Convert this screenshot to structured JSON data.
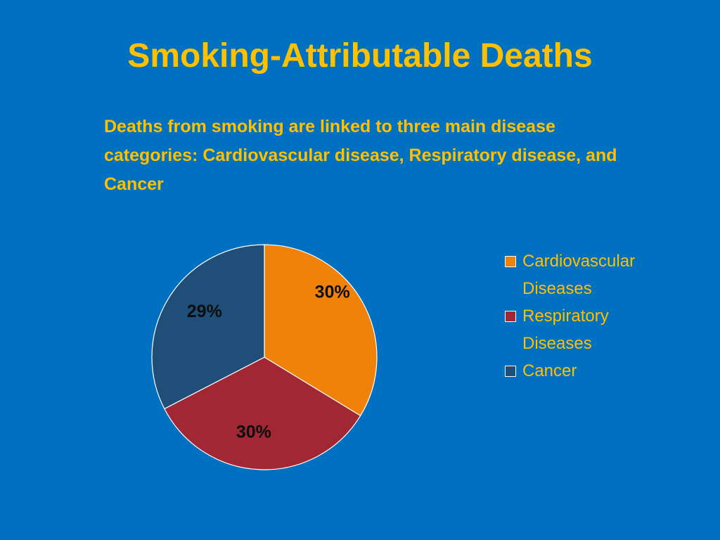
{
  "slide": {
    "title": "Smoking-Attributable Deaths",
    "subtitle": "Deaths from smoking are linked to three main disease categories: Cardiovascular disease, Respiratory disease, and Cancer"
  },
  "colors": {
    "background": "#0070c0",
    "title_text": "#ffc000",
    "cardiovascular": "#f0820a",
    "respiratory": "#a12735",
    "cancer": "#1f4e79",
    "slice_border": "#ffffff"
  },
  "chart_data": {
    "type": "pie",
    "categories": [
      "Cardiovascular Diseases",
      "Respiratory Diseases",
      "Cancer"
    ],
    "values": [
      30,
      30,
      29
    ],
    "data_labels": [
      "30%",
      "30%",
      "29%"
    ],
    "legend_placement": "right",
    "legend": [
      {
        "label": "Cardiovascular Diseases",
        "color": "#f0820a"
      },
      {
        "label": "Respiratory Diseases",
        "color": "#a12735"
      },
      {
        "label": "Cancer",
        "color": "#1f4e79"
      }
    ]
  }
}
